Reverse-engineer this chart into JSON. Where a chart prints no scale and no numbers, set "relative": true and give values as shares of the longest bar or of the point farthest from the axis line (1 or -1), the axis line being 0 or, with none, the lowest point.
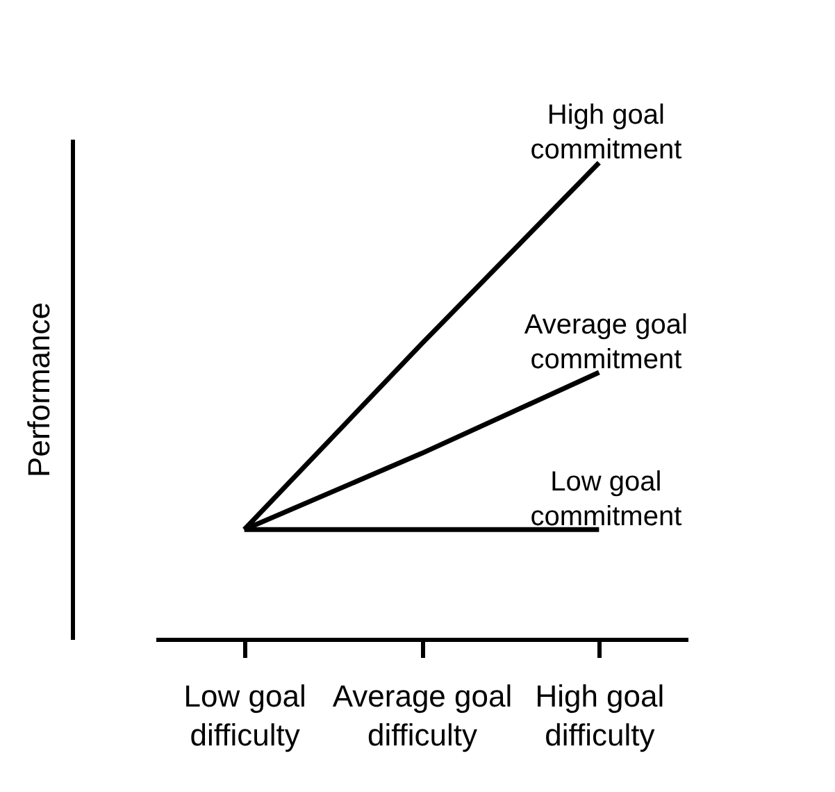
{
  "chart_data": {
    "type": "line",
    "relative": true,
    "ylabel": "Performance",
    "tick_labels": "x",
    "grid": false,
    "legend": false,
    "marker": "none",
    "line_style": "solid",
    "categories": [
      "Low goal difficulty",
      "Average goal difficulty",
      "High goal difficulty"
    ],
    "series": [
      {
        "name": "High goal commitment",
        "color": "#000000",
        "values": [
          0.23,
          0.62,
          1
        ]
      },
      {
        "name": "Average goal commitment",
        "color": "#000000",
        "values": [
          0.23,
          0.39,
          0.56
        ]
      },
      {
        "name": "Low goal commitment",
        "color": "#000000",
        "values": [
          0.23,
          0.23,
          0.23
        ]
      }
    ]
  }
}
